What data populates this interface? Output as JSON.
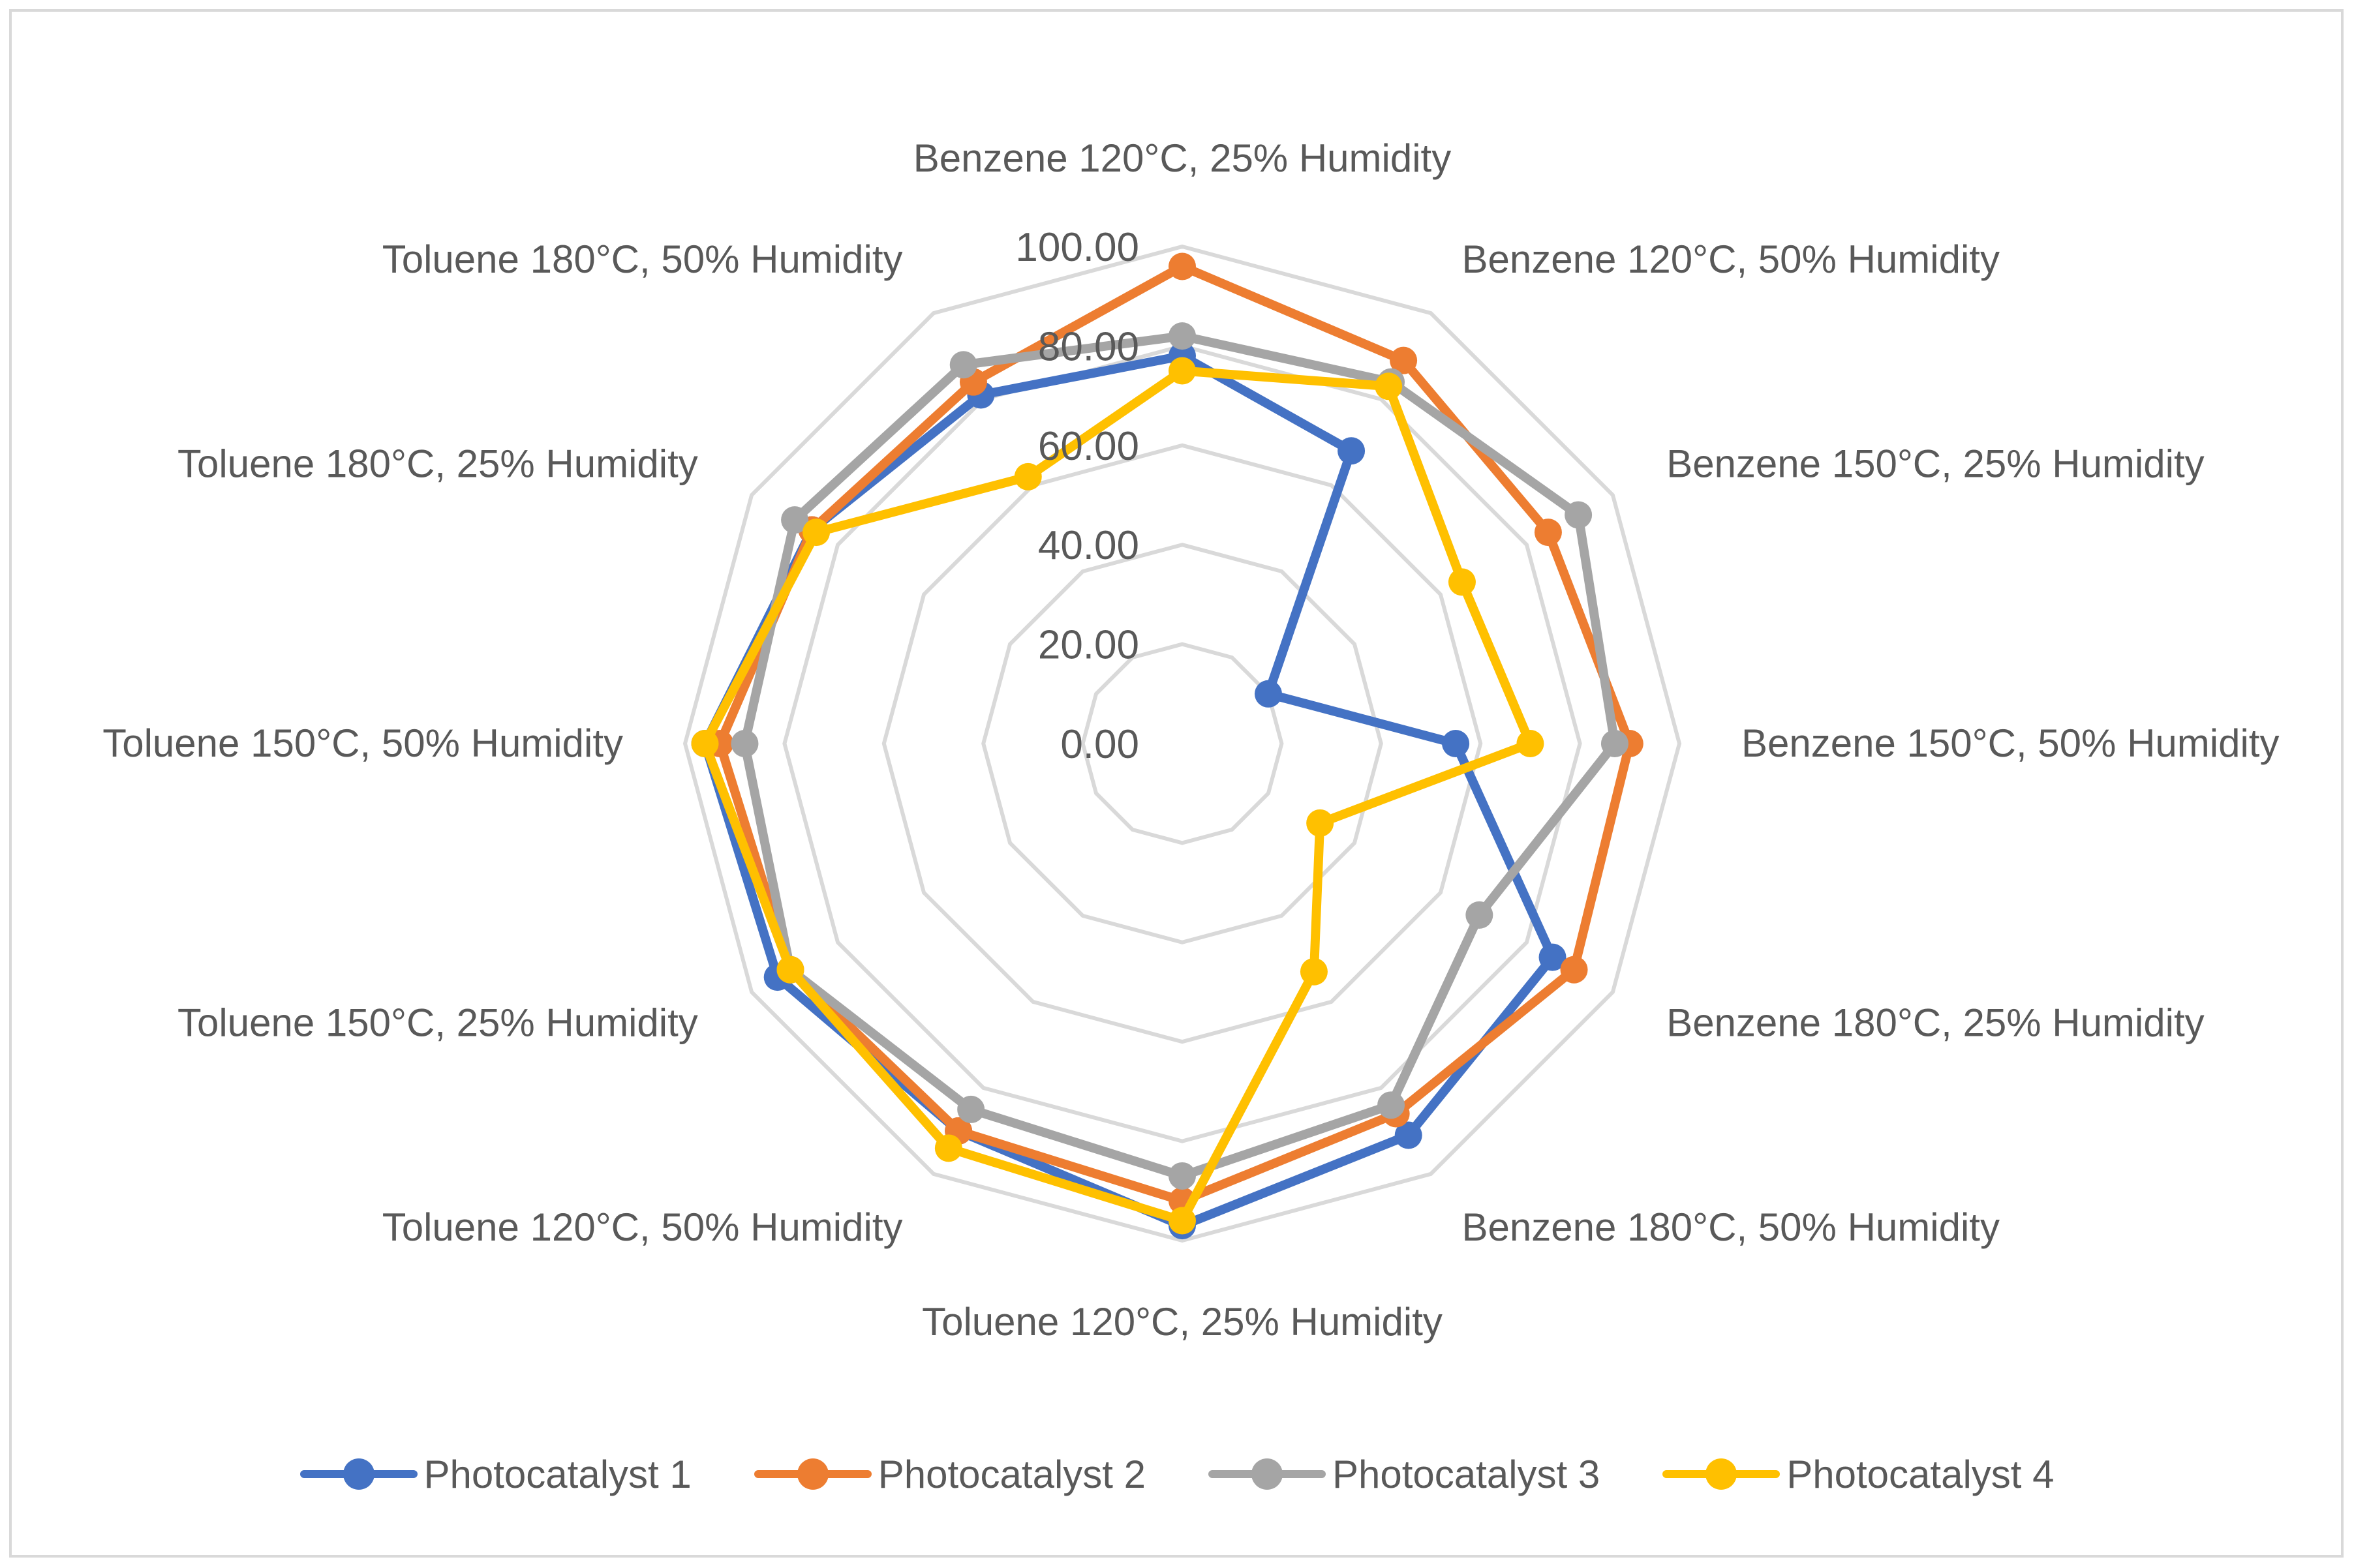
{
  "chart_data": {
    "type": "radar",
    "title": "",
    "categories": [
      "Benzene 120°C, 25% Humidity",
      "Benzene 120°C, 50% Humidity",
      "Benzene 150°C, 25% Humidity",
      "Benzene 150°C, 50% Humidity",
      "Benzene 180°C, 25% Humidity",
      "Benzene 180°C, 50% Humidity",
      "Toluene 120°C, 25% Humidity",
      "Toluene 120°C, 50% Humidity",
      "Toluene 150°C, 25% Humidity",
      "Toluene 150°C, 50% Humidity",
      "Toluene 180°C, 25% Humidity",
      "Toluene 180°C, 50% Humidity"
    ],
    "rlim": [
      0,
      100
    ],
    "ticks": [
      "0.00",
      "20.00",
      "40.00",
      "60.00",
      "80.00",
      "100.00"
    ],
    "tick_values": [
      0,
      20,
      40,
      60,
      80,
      100
    ],
    "grid": true,
    "legend_position": "bottom",
    "series": [
      {
        "name": "Photocatalyst 1",
        "color": "#4472C4",
        "values": [
          78,
          68,
          20,
          55,
          86,
          91,
          97,
          90,
          94,
          96,
          86,
          81
        ]
      },
      {
        "name": "Photocatalyst 2",
        "color": "#ED7D31",
        "values": [
          96,
          89,
          85,
          90,
          91,
          86,
          92,
          90,
          91,
          93,
          86,
          84
        ]
      },
      {
        "name": "Photocatalyst 3",
        "color": "#A5A5A5",
        "values": [
          82,
          84,
          92,
          87,
          69,
          84,
          87,
          85,
          91,
          88,
          90,
          88
        ]
      },
      {
        "name": "Photocatalyst 4",
        "color": "#FFC000",
        "values": [
          75,
          83,
          65,
          70,
          32,
          53,
          96,
          94,
          91,
          96,
          85,
          62
        ]
      }
    ]
  }
}
